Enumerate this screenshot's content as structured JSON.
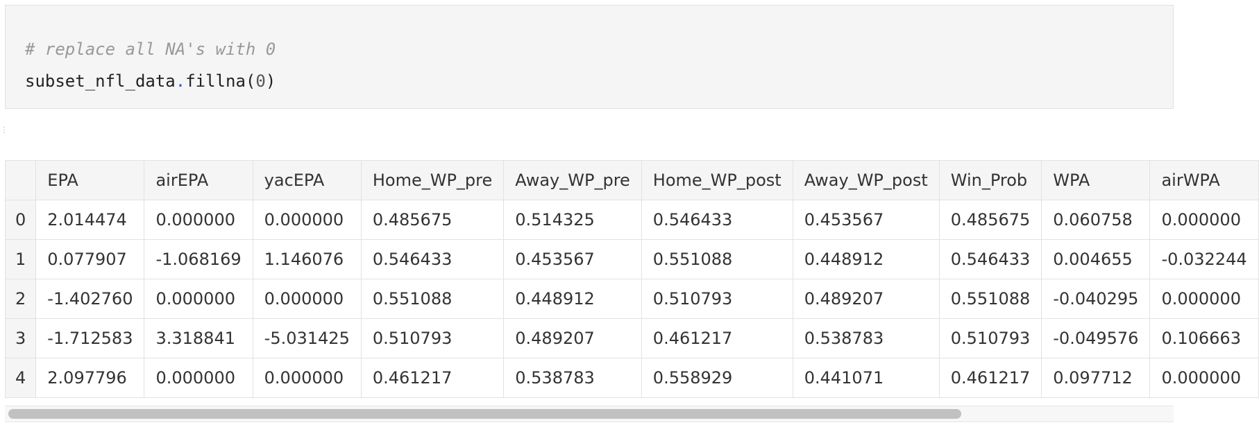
{
  "code_cell": {
    "comment": "# replace all NA's with 0",
    "code_obj": "subset_nfl_data",
    "code_dot": ".",
    "code_method": "fillna",
    "code_open": "(",
    "code_arg": "0",
    "code_close": ")"
  },
  "table": {
    "columns": [
      "EPA",
      "airEPA",
      "yacEPA",
      "Home_WP_pre",
      "Away_WP_pre",
      "Home_WP_post",
      "Away_WP_post",
      "Win_Prob",
      "WPA",
      "airWPA"
    ],
    "rows": [
      {
        "index": "0",
        "cells": [
          "2.014474",
          "0.000000",
          "0.000000",
          "0.485675",
          "0.514325",
          "0.546433",
          "0.453567",
          "0.485675",
          "0.060758",
          "0.000000"
        ]
      },
      {
        "index": "1",
        "cells": [
          "0.077907",
          "-1.068169",
          "1.146076",
          "0.546433",
          "0.453567",
          "0.551088",
          "0.448912",
          "0.546433",
          "0.004655",
          "-0.032244"
        ]
      },
      {
        "index": "2",
        "cells": [
          "-1.402760",
          "0.000000",
          "0.000000",
          "0.551088",
          "0.448912",
          "0.510793",
          "0.489207",
          "0.551088",
          "-0.040295",
          "0.000000"
        ]
      },
      {
        "index": "3",
        "cells": [
          "-1.712583",
          "3.318841",
          "-5.031425",
          "0.510793",
          "0.489207",
          "0.461217",
          "0.538783",
          "0.510793",
          "-0.049576",
          "0.106663"
        ]
      },
      {
        "index": "4",
        "cells": [
          "2.097796",
          "0.000000",
          "0.000000",
          "0.461217",
          "0.538783",
          "0.558929",
          "0.441071",
          "0.461217",
          "0.097712",
          "0.000000"
        ]
      }
    ]
  },
  "scrollbar": {
    "position_fraction": 0.0,
    "visible_fraction": 0.82
  }
}
